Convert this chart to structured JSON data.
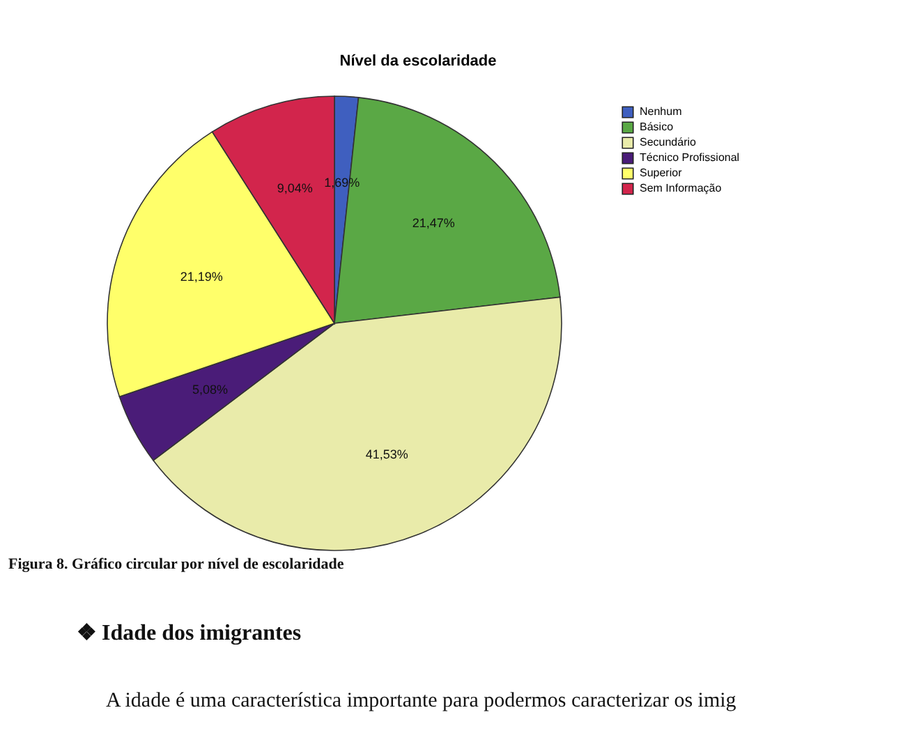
{
  "chart_data": {
    "type": "pie",
    "title": "Nível da escolaridade",
    "categories": [
      "Nenhum",
      "Básico",
      "Secundário",
      "Técnico Profissional",
      "Superior",
      "Sem Informação"
    ],
    "values": [
      1.69,
      21.47,
      41.53,
      5.08,
      21.19,
      9.04
    ],
    "colors": [
      "#3f5fbf",
      "#5aa845",
      "#e9ebaa",
      "#4a1c78",
      "#ffff6a",
      "#d2254c"
    ],
    "value_labels": [
      "1,69%",
      "21,47%",
      "41,53%",
      "5,08%",
      "21,19%",
      "9,04%"
    ],
    "legend": "top right",
    "annotations": [
      "Figura 8. Gráfico circular por nível de escolaridade",
      "❖ Idade dos imigrantes",
      "A idade é uma característica importante para podermos caracterizar os imig"
    ]
  }
}
